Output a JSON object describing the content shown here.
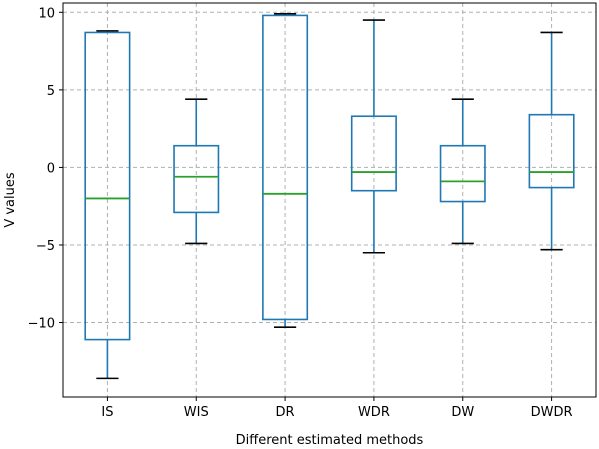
{
  "chart_data": {
    "type": "box",
    "xlabel": "Different estimated methods",
    "ylabel": "V values",
    "ylim": [
      -14.8,
      10.6
    ],
    "yticks": [
      10,
      5,
      0,
      -5,
      -10
    ],
    "ytick_labels": [
      "10",
      "5",
      "0",
      "−5",
      "−10"
    ],
    "grid": true,
    "colors": {
      "box": "#1f77b4",
      "median": "#2ca02c",
      "whisker_cap": "#000000",
      "grid": "#b0b0b0"
    },
    "categories": [
      "IS",
      "WIS",
      "DR",
      "WDR",
      "DW",
      "DWDR"
    ],
    "boxes": [
      {
        "label": "IS",
        "whislo": -13.6,
        "q1": -11.1,
        "med": -2.0,
        "q3": 8.7,
        "whishi": 8.8
      },
      {
        "label": "WIS",
        "whislo": -4.9,
        "q1": -2.9,
        "med": -0.6,
        "q3": 1.4,
        "whishi": 4.4
      },
      {
        "label": "DR",
        "whislo": -10.3,
        "q1": -9.8,
        "med": -1.7,
        "q3": 9.8,
        "whishi": 9.9
      },
      {
        "label": "WDR",
        "whislo": -5.5,
        "q1": -1.5,
        "med": -0.3,
        "q3": 3.3,
        "whishi": 9.5
      },
      {
        "label": "DW",
        "whislo": -4.9,
        "q1": -2.2,
        "med": -0.9,
        "q3": 1.4,
        "whishi": 4.4
      },
      {
        "label": "DWDR",
        "whislo": -5.3,
        "q1": -1.3,
        "med": -0.3,
        "q3": 3.4,
        "whishi": 8.7
      }
    ]
  }
}
